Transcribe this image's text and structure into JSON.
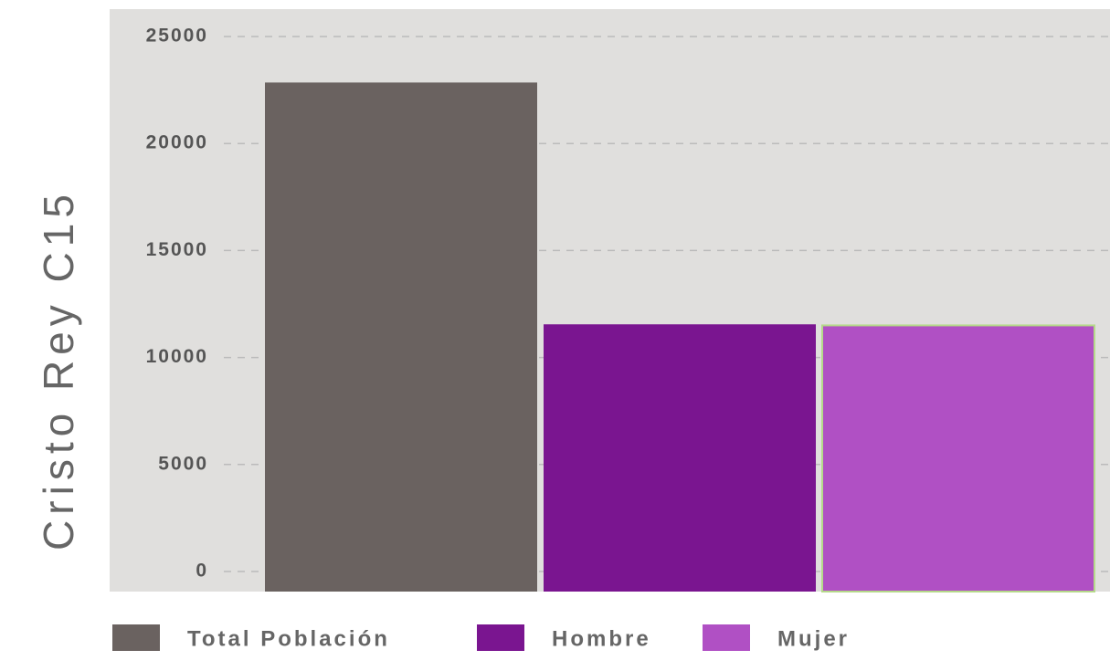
{
  "chart_data": {
    "type": "bar",
    "ylabel": "Cristo Rey C15",
    "categories": [
      "Total Población",
      "Hombre",
      "Mujer"
    ],
    "values": [
      22850,
      11550,
      11500
    ],
    "colors": [
      "#6a6260",
      "#7a1590",
      "#b050c4"
    ],
    "edgecolors": [
      null,
      null,
      "#b5d98a"
    ],
    "ylim": [
      -940,
      26280
    ],
    "yticks": [
      0,
      5000,
      10000,
      15000,
      20000,
      25000
    ],
    "grid": true
  }
}
